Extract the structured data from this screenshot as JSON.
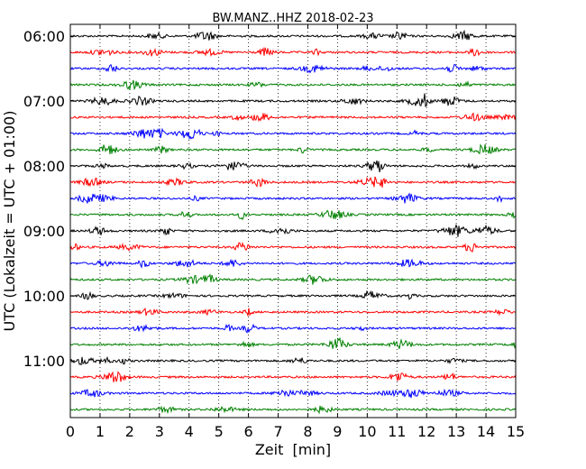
{
  "chart_data": {
    "type": "line",
    "title": "BW.MANZ..HHZ 2018-02-23",
    "xlabel": "Zeit  [min]",
    "ylabel": "UTC (Lokalzeit = UTC + 01:00)",
    "xlim": [
      0,
      15
    ],
    "x_ticks": [
      0,
      1,
      2,
      3,
      4,
      5,
      6,
      7,
      8,
      9,
      10,
      11,
      12,
      13,
      14,
      15
    ],
    "x_tick_labels": [
      "0",
      "1",
      "2",
      "3",
      "4",
      "5",
      "6",
      "7",
      "8",
      "9",
      "10",
      "11",
      "12",
      "13",
      "14",
      "15"
    ],
    "y_tick_labels": [
      "06:00",
      "07:00",
      "08:00",
      "09:00",
      "10:00",
      "11:00"
    ],
    "trace_count": 24,
    "trace_interval_minutes": 15,
    "first_trace": "06:00",
    "color_cycle": [
      "#000000",
      "#ff0000",
      "#0000ff",
      "#008000"
    ],
    "grid": "vertical dotted",
    "legend": "none"
  }
}
